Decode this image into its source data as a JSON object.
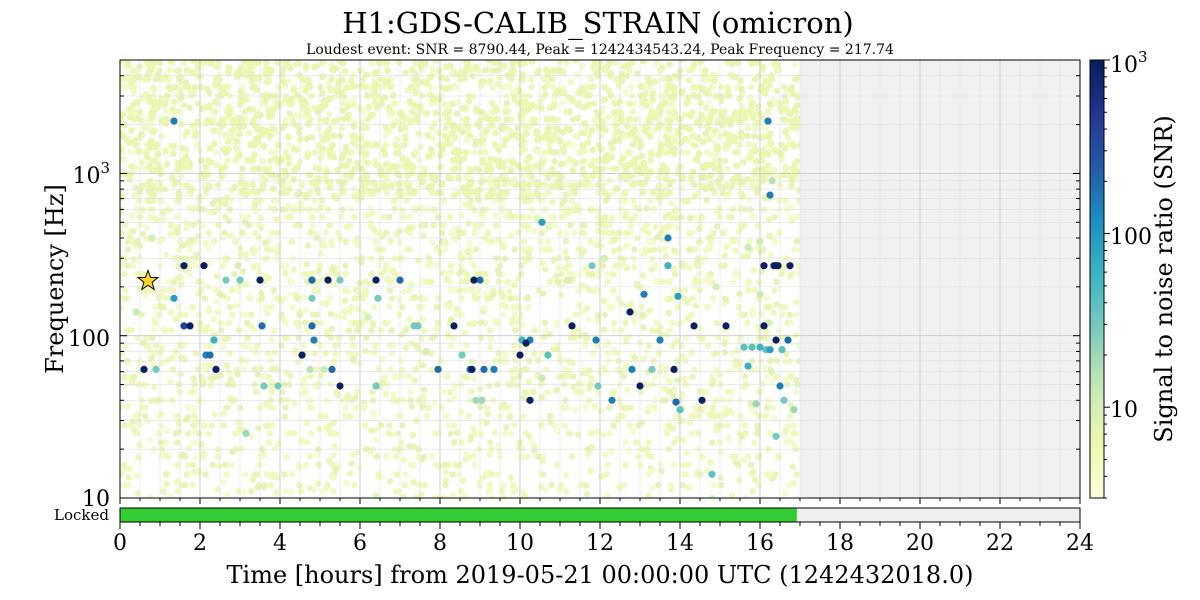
{
  "chart_data": {
    "type": "scatter",
    "title": "H1:GDS-CALIB_STRAIN (omicron)",
    "subtitle": "Loudest event: SNR = 8790.44, Peak = 1242434543.24, Peak Frequency = 217.74",
    "xlabel": "Time [hours] from 2019-05-21 00:00:00 UTC (1242432018.0)",
    "ylabel": "Frequency [Hz]",
    "colorbar_label": "Signal to noise ratio (SNR)",
    "colormap": "YlGnBu",
    "xlim": [
      0,
      24
    ],
    "ylim": [
      10,
      5000
    ],
    "yscale": "log",
    "color_scale": "log",
    "clim": [
      3,
      1000
    ],
    "grid": true,
    "x_ticks": [
      "0",
      "2",
      "4",
      "6",
      "8",
      "10",
      "12",
      "14",
      "16",
      "18",
      "20",
      "22",
      "24"
    ],
    "y_ticks": [
      "10",
      "10^3"
    ],
    "y_tick_100": "100",
    "colorbar_ticks": [
      "10",
      "100",
      "10^3"
    ],
    "data_end_hours": 17.0,
    "state_segment": {
      "label": "Locked",
      "active": [
        [
          0,
          16.92
        ]
      ],
      "active_color": "#33cc33",
      "inactive_color": "#efefef"
    },
    "loudest_event": {
      "x": 0.7,
      "y": 217.74,
      "snr": 8790.44
    },
    "points": [
      [
        0.6,
        62,
        900
      ],
      [
        0.9,
        62,
        30
      ],
      [
        1.35,
        2100,
        150
      ],
      [
        1.35,
        170,
        90
      ],
      [
        1.6,
        270,
        900
      ],
      [
        1.6,
        115,
        400
      ],
      [
        1.75,
        115,
        900
      ],
      [
        2.1,
        270,
        900
      ],
      [
        2.15,
        76,
        150
      ],
      [
        2.25,
        76,
        200
      ],
      [
        2.35,
        94,
        60
      ],
      [
        2.4,
        62,
        900
      ],
      [
        2.65,
        220,
        30
      ],
      [
        3.0,
        220,
        30
      ],
      [
        3.5,
        220,
        900
      ],
      [
        3.55,
        115,
        200
      ],
      [
        3.6,
        49,
        30
      ],
      [
        3.95,
        49,
        30
      ],
      [
        4.55,
        76,
        900
      ],
      [
        4.8,
        220,
        200
      ],
      [
        4.8,
        170,
        30
      ],
      [
        4.8,
        115,
        200
      ],
      [
        4.85,
        94,
        150
      ],
      [
        5.2,
        220,
        900
      ],
      [
        5.3,
        62,
        200
      ],
      [
        5.5,
        49,
        900
      ],
      [
        5.5,
        220,
        30
      ],
      [
        6.4,
        220,
        900
      ],
      [
        6.45,
        170,
        30
      ],
      [
        6.4,
        49,
        30
      ],
      [
        7.0,
        220,
        200
      ],
      [
        7.35,
        115,
        30
      ],
      [
        7.45,
        115,
        30
      ],
      [
        7.95,
        62,
        200
      ],
      [
        8.35,
        115,
        900
      ],
      [
        8.55,
        76,
        30
      ],
      [
        8.75,
        62,
        200
      ],
      [
        8.85,
        220,
        900
      ],
      [
        8.8,
        62,
        900
      ],
      [
        9.0,
        220,
        200
      ],
      [
        9.1,
        62,
        200
      ],
      [
        9.35,
        62,
        150
      ],
      [
        10.0,
        76,
        900
      ],
      [
        10.05,
        94,
        60
      ],
      [
        10.15,
        90,
        900
      ],
      [
        10.25,
        94,
        150
      ],
      [
        10.25,
        40,
        900
      ],
      [
        10.55,
        500,
        90
      ],
      [
        10.7,
        76,
        40
      ],
      [
        11.3,
        115,
        900
      ],
      [
        11.8,
        270,
        30
      ],
      [
        11.9,
        94,
        150
      ],
      [
        11.95,
        49,
        30
      ],
      [
        12.3,
        40,
        150
      ],
      [
        12.75,
        140,
        900
      ],
      [
        12.8,
        62,
        150
      ],
      [
        13.0,
        49,
        900
      ],
      [
        13.1,
        180,
        150
      ],
      [
        13.3,
        62,
        30
      ],
      [
        13.5,
        94,
        150
      ],
      [
        13.7,
        400,
        150
      ],
      [
        13.7,
        270,
        60
      ],
      [
        13.85,
        62,
        900
      ],
      [
        13.9,
        39,
        200
      ],
      [
        13.95,
        175,
        90
      ],
      [
        14.0,
        35,
        40
      ],
      [
        14.35,
        115,
        900
      ],
      [
        14.55,
        40,
        900
      ],
      [
        14.8,
        14,
        40
      ],
      [
        15.15,
        115,
        900
      ],
      [
        15.6,
        85,
        40
      ],
      [
        15.7,
        65,
        60
      ],
      [
        15.8,
        85,
        40
      ],
      [
        16.0,
        85,
        60
      ],
      [
        16.1,
        270,
        900
      ],
      [
        16.1,
        115,
        900
      ],
      [
        16.15,
        82,
        40
      ],
      [
        16.25,
        82,
        90
      ],
      [
        16.2,
        2100,
        150
      ],
      [
        16.25,
        735,
        150
      ],
      [
        16.3,
        900,
        15
      ],
      [
        16.35,
        270,
        900
      ],
      [
        16.4,
        270,
        900
      ],
      [
        16.4,
        94,
        900
      ],
      [
        16.45,
        270,
        900
      ],
      [
        16.5,
        49,
        150
      ],
      [
        16.6,
        40,
        30
      ],
      [
        16.4,
        24,
        30
      ],
      [
        16.7,
        94,
        200
      ],
      [
        16.75,
        270,
        900
      ],
      [
        16.85,
        35,
        20
      ],
      [
        16.55,
        82,
        40
      ],
      [
        3.15,
        25,
        20
      ],
      [
        8.9,
        40,
        20
      ],
      [
        9.05,
        40,
        20
      ],
      [
        4.75,
        62,
        15
      ],
      [
        15.9,
        38,
        20
      ],
      [
        16.0,
        380,
        12
      ],
      [
        15.7,
        350,
        12
      ],
      [
        0.8,
        400,
        10
      ],
      [
        5.1,
        62,
        12
      ],
      [
        12.1,
        300,
        10
      ],
      [
        2.95,
        270,
        10
      ],
      [
        10.55,
        55,
        12
      ],
      [
        7.65,
        80,
        10
      ],
      [
        11.2,
        220,
        10
      ],
      [
        6.2,
        130,
        10
      ],
      [
        14.9,
        200,
        10
      ],
      [
        16.0,
        180,
        12
      ],
      [
        16.2,
        120,
        10
      ],
      [
        0.4,
        140,
        12
      ]
    ]
  }
}
